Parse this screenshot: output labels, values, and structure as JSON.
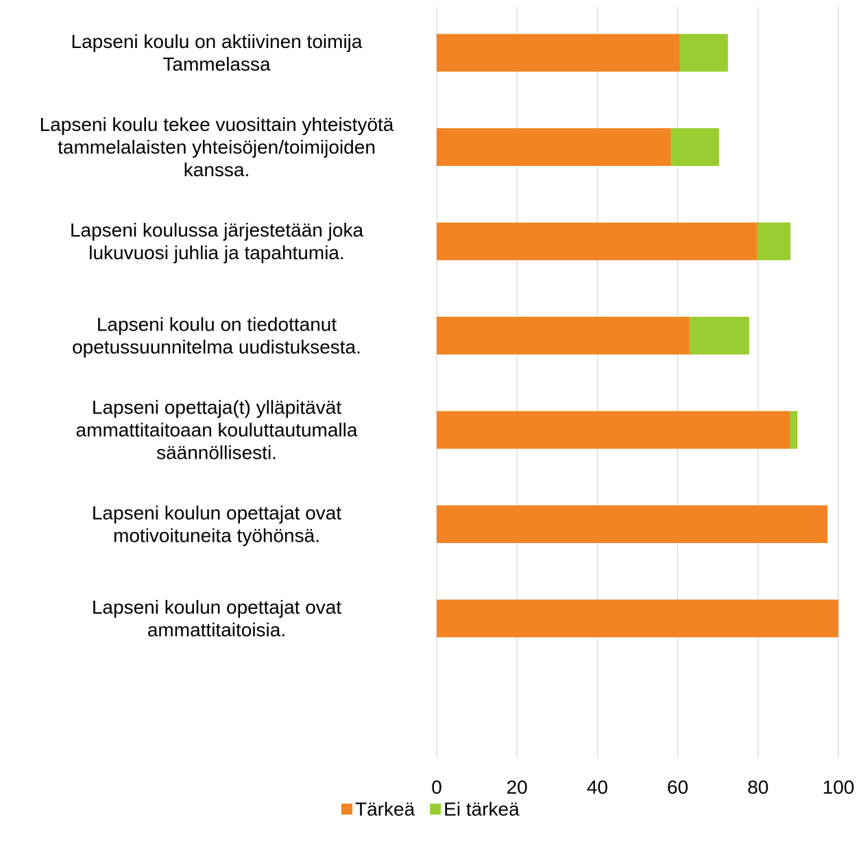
{
  "chart_data": {
    "type": "bar",
    "orientation": "horizontal",
    "stacked": true,
    "categories": [
      [
        "Lapseni koulu on aktiivinen toimija",
        "Tammelassa"
      ],
      [
        "Lapseni koulu tekee vuosittain yhteistyötä",
        "tammelalaisten yhteisöjen/toimijoiden",
        "kanssa."
      ],
      [
        "Lapseni koulussa järjestetään joka",
        "lukuvuosi juhlia ja tapahtumia."
      ],
      [
        "Lapseni koulu on tiedottanut",
        "opetussuunnitelma uudistuksesta."
      ],
      [
        "Lapseni opettaja(t) ylläpitävät",
        "ammattitaitoaan kouluttautumalla",
        "säännöllisesti."
      ],
      [
        "Lapseni koulun opettajat ovat",
        "motivoituneita työhönsä."
      ],
      [
        "Lapseni koulun opettajat ovat",
        "ammattitaitoisia."
      ]
    ],
    "series": [
      {
        "name": "Tärkeä",
        "color": "#F28424",
        "values": [
          60.5,
          58.3,
          79.8,
          62.8,
          88.0,
          97.3,
          100
        ]
      },
      {
        "name": "Ei tärkeä",
        "color": "#9ACD32",
        "values": [
          12.0,
          12.0,
          8.3,
          15.0,
          1.8,
          0,
          0
        ]
      }
    ],
    "xlim": [
      0,
      100
    ],
    "xticks": [
      0,
      20,
      40,
      60,
      80,
      100
    ],
    "xlabel": "",
    "ylabel": "",
    "title": "",
    "grid": true,
    "legend_position": "bottom"
  }
}
